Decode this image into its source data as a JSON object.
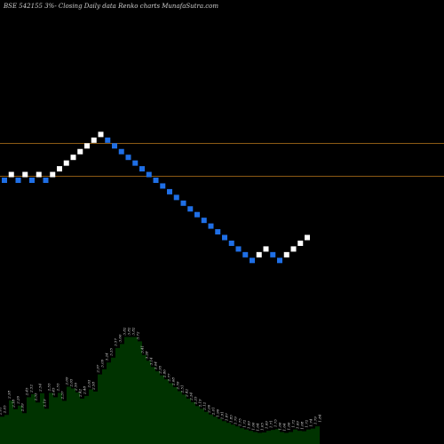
{
  "chart_data": {
    "type": "renko",
    "title": "BSE 542155 3%-  Closing Daily data  Renko  charts MunafaSutra.com",
    "colors": {
      "background": "#000000",
      "up_brick": "#ffffff",
      "down_brick": "#1f6fe6",
      "reference_line": "#8b5a14",
      "area_fill": "#003300"
    },
    "reference_lines": [
      1,
      2
    ],
    "bricks": {
      "directions": [
        "D",
        "U",
        "D",
        "U",
        "D",
        "U",
        "D",
        "U",
        "U",
        "U",
        "U",
        "U",
        "U",
        "U",
        "U",
        "D",
        "D",
        "D",
        "D",
        "D",
        "D",
        "D",
        "D",
        "D",
        "D",
        "D",
        "D",
        "D",
        "D",
        "D",
        "D",
        "D",
        "D",
        "D",
        "D",
        "D",
        "D",
        "U",
        "U",
        "D",
        "D",
        "U",
        "U",
        "U",
        "U"
      ],
      "levels": [
        7,
        8,
        7,
        8,
        7,
        8,
        7,
        8,
        9,
        10,
        11,
        12,
        13,
        14,
        15,
        14,
        13,
        12,
        11,
        10,
        9,
        8,
        7,
        6,
        5,
        4,
        3,
        2,
        1,
        0,
        -1,
        -2,
        -3,
        -4,
        -5,
        -6,
        -7,
        -6,
        -5,
        -6,
        -7,
        -6,
        -5,
        -4,
        -3
      ]
    },
    "lower_panel": {
      "values": [
        2.01,
        2.05,
        2.38,
        2.18,
        2.26,
        2.09,
        2.45,
        2.52,
        2.33,
        2.54,
        2.19,
        2.55,
        2.45,
        2.55,
        2.37,
        2.69,
        2.65,
        2.56,
        2.42,
        2.48,
        2.63,
        2.58,
        2.97,
        3.09,
        3.24,
        3.35,
        3.57,
        3.66,
        3.82,
        3.82,
        3.82,
        3.72,
        3.41,
        3.28,
        3.14,
        3.04,
        2.95,
        2.86,
        2.77,
        2.68,
        2.59,
        2.51,
        2.42,
        2.34,
        2.25,
        2.19,
        2.12,
        2.06,
        2.01,
        1.96,
        1.91,
        1.87,
        1.83,
        1.79,
        1.75,
        1.72,
        1.69,
        1.66,
        1.64,
        1.65,
        1.69,
        1.71,
        1.73,
        1.66,
        1.64,
        1.66,
        1.72,
        1.69,
        1.68,
        1.72,
        1.74,
        1.79,
        1.84
      ],
      "labels": [
        "2.01",
        "2.05",
        "2.38",
        "2.18",
        "2.26",
        "2.09",
        "2.45",
        "2.52",
        "2.33",
        "2.54",
        "2.19",
        "2.55",
        "2.45",
        "2.55",
        "2.37",
        "2.69",
        "2.65",
        "2.56",
        "2.42",
        "2.48",
        "2.63",
        "2.58",
        "2.97",
        "3.09",
        "3.24",
        "3.35",
        "3.57",
        "3.66",
        "3.82",
        "3.82",
        "3.82",
        "3.72",
        "3.41",
        "3.28",
        "3.14",
        "3.04",
        "2.95",
        "2.86",
        "2.77",
        "2.68",
        "2.59",
        "2.51",
        "2.42",
        "2.34",
        "2.25",
        "2.19",
        "2.12",
        "2.06",
        "2.01",
        "1.96",
        "1.91",
        "1.87",
        "1.83",
        "1.79",
        "1.75",
        "1.72",
        "1.69",
        "1.66",
        "1.64",
        "1.65",
        "1.69",
        "1.71",
        "1.73",
        "1.66",
        "1.64",
        "1.66",
        "1.72",
        "1.69",
        "1.68",
        "1.72",
        "1.74",
        "1.79",
        "1.84"
      ]
    }
  }
}
